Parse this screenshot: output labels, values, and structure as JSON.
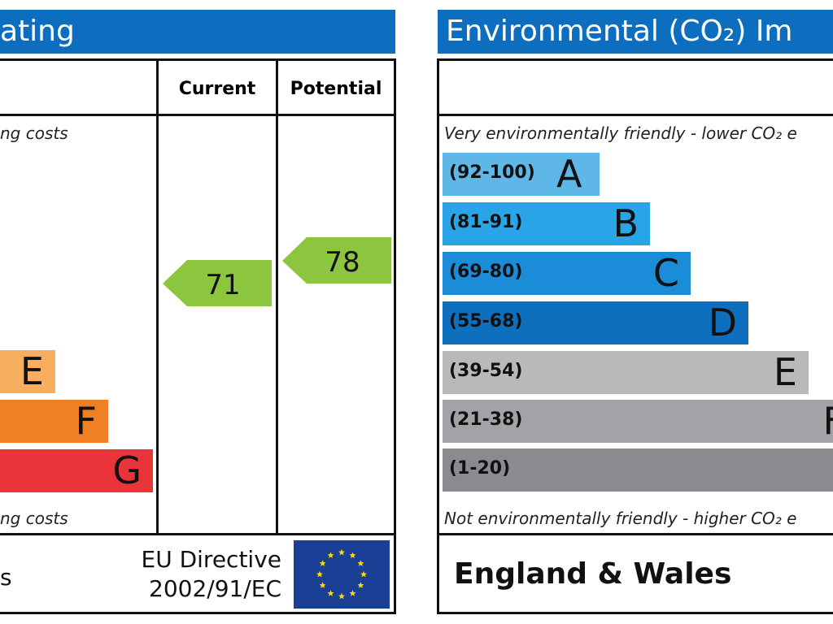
{
  "left_panel": {
    "title": "ating",
    "col_current": "Current",
    "col_potential": "Potential",
    "top_note": "ng costs",
    "bottom_note": "ng costs",
    "footer_left": "s",
    "directive_line1": "EU Directive",
    "directive_line2": "2002/91/EC"
  },
  "right_panel": {
    "title": "Environmental (CO₂) Im",
    "top_note": "Very environmentally friendly - lower CO₂ e",
    "bottom_note": "Not environmentally friendly - higher CO₂ e",
    "footer": "England & Wales"
  },
  "chart_data": [
    {
      "type": "bar",
      "title": "",
      "categories": [
        "E",
        "F",
        "G"
      ],
      "colors": [
        "#f7ae5e",
        "#ef8023",
        "#e9353a"
      ],
      "current": 71,
      "potential": 78,
      "current_color": "#8cc63f",
      "potential_color": "#8cc63f"
    },
    {
      "type": "bar",
      "title": "",
      "bands": [
        {
          "range": "(92-100)",
          "letter": "A",
          "color": "#5fb7e8"
        },
        {
          "range": "(81-91)",
          "letter": "B",
          "color": "#29a4e6"
        },
        {
          "range": "(69-80)",
          "letter": "C",
          "color": "#1a8cd8"
        },
        {
          "range": "(55-68)",
          "letter": "D",
          "color": "#0f6fbf"
        },
        {
          "range": "(39-54)",
          "letter": "E",
          "color": "#b8b9bb"
        },
        {
          "range": "(21-38)",
          "letter": "F",
          "color": "#a2a3a6"
        },
        {
          "range": "(1-20)",
          "letter": "",
          "color": "#8a8b8e"
        }
      ]
    }
  ],
  "colors": {
    "header_blue": "#0d6dbf",
    "eu_blue": "#1b3f95",
    "eu_star": "#ffdd00"
  }
}
